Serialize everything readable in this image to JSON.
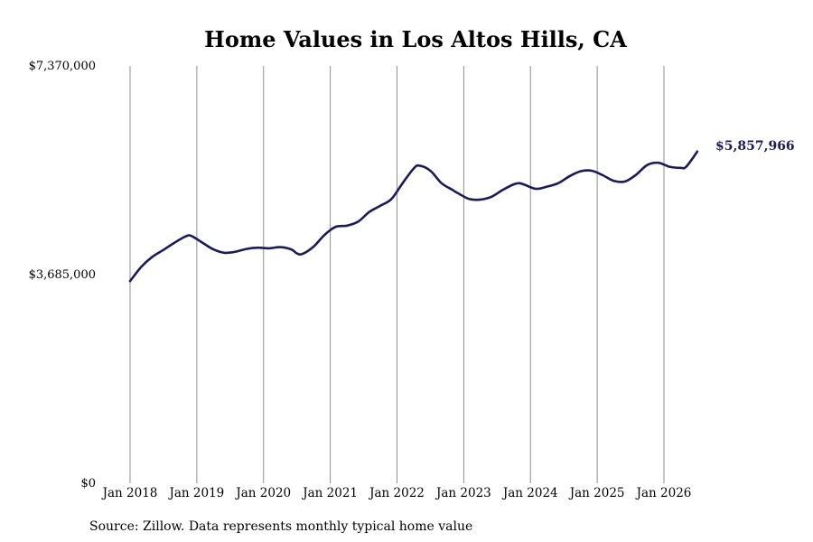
{
  "chart_data": {
    "type": "line",
    "title": "Home Values in Los Altos Hills, CA",
    "xlabel": "",
    "ylabel": "",
    "ylim": [
      0,
      7370000
    ],
    "y_ticks": [
      {
        "value": 0,
        "label": "$0"
      },
      {
        "value": 3685000,
        "label": "$3,685,000"
      },
      {
        "value": 7370000,
        "label": "$7,370,000"
      }
    ],
    "x_ticks": [
      "Jan 2018",
      "Jan 2019",
      "Jan 2020",
      "Jan 2021",
      "Jan 2022",
      "Jan 2023",
      "Jan 2024",
      "Jan 2025",
      "Jan 2026"
    ],
    "x_range": [
      "2018-01",
      "2026-07"
    ],
    "grid": {
      "vertical": true,
      "horizontal": false
    },
    "end_label": "$5,857,966",
    "source": "Source: Zillow. Data represents monthly typical home value",
    "series": [
      {
        "color": "#1a1a5e",
        "points": [
          [
            "2018-01",
            3570000
          ],
          [
            "2018-03",
            3820000
          ],
          [
            "2018-05",
            4000000
          ],
          [
            "2018-07",
            4120000
          ],
          [
            "2018-09",
            4250000
          ],
          [
            "2018-11",
            4360000
          ],
          [
            "2018-12",
            4370000
          ],
          [
            "2019-02",
            4250000
          ],
          [
            "2019-04",
            4130000
          ],
          [
            "2019-06",
            4070000
          ],
          [
            "2019-08",
            4090000
          ],
          [
            "2019-10",
            4140000
          ],
          [
            "2019-12",
            4160000
          ],
          [
            "2020-02",
            4150000
          ],
          [
            "2020-04",
            4170000
          ],
          [
            "2020-06",
            4130000
          ],
          [
            "2020-07",
            4060000
          ],
          [
            "2020-08",
            4050000
          ],
          [
            "2020-10",
            4180000
          ],
          [
            "2020-12",
            4390000
          ],
          [
            "2021-02",
            4530000
          ],
          [
            "2021-04",
            4550000
          ],
          [
            "2021-06",
            4620000
          ],
          [
            "2021-08",
            4790000
          ],
          [
            "2021-10",
            4900000
          ],
          [
            "2021-12",
            5020000
          ],
          [
            "2022-02",
            5300000
          ],
          [
            "2022-04",
            5560000
          ],
          [
            "2022-05",
            5610000
          ],
          [
            "2022-07",
            5520000
          ],
          [
            "2022-09",
            5300000
          ],
          [
            "2022-11",
            5180000
          ],
          [
            "2022-12",
            5120000
          ],
          [
            "2023-02",
            5020000
          ],
          [
            "2023-04",
            5010000
          ],
          [
            "2023-06",
            5060000
          ],
          [
            "2023-08",
            5180000
          ],
          [
            "2023-10",
            5280000
          ],
          [
            "2023-11",
            5300000
          ],
          [
            "2023-12",
            5270000
          ],
          [
            "2024-02",
            5200000
          ],
          [
            "2024-04",
            5240000
          ],
          [
            "2024-06",
            5300000
          ],
          [
            "2024-08",
            5420000
          ],
          [
            "2024-10",
            5510000
          ],
          [
            "2024-12",
            5520000
          ],
          [
            "2025-02",
            5440000
          ],
          [
            "2025-04",
            5340000
          ],
          [
            "2025-06",
            5330000
          ],
          [
            "2025-08",
            5450000
          ],
          [
            "2025-10",
            5620000
          ],
          [
            "2025-12",
            5660000
          ],
          [
            "2026-02",
            5590000
          ],
          [
            "2026-04",
            5570000
          ],
          [
            "2026-05",
            5590000
          ],
          [
            "2026-07",
            5858000
          ]
        ]
      }
    ]
  }
}
